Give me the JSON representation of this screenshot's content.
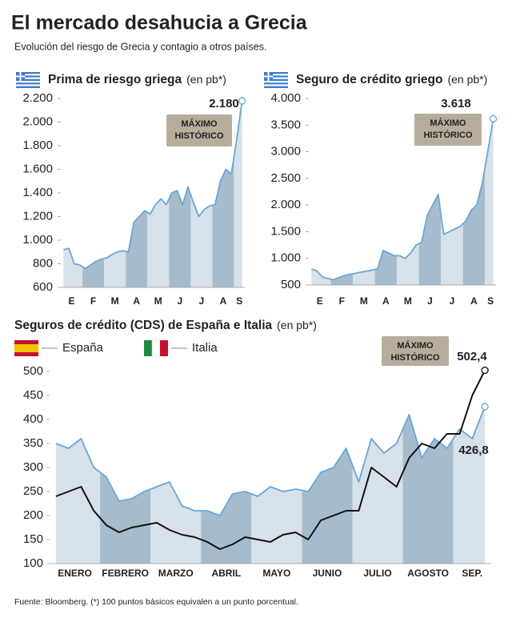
{
  "title": "El mercado desahucia a Grecia",
  "subtitle": "Evolución del riesgo de Grecia y contagio a otros países.",
  "source": "Fuente: Bloomberg. (*) 100 puntos básicos equivalen a un punto porcentual.",
  "chart_data": [
    {
      "type": "area",
      "title": "Prima de riesgo griega",
      "unit": "(en pb*)",
      "categories": [
        "E",
        null,
        null,
        null,
        "F",
        null,
        null,
        null,
        "M",
        null,
        null,
        null,
        "A",
        null,
        null,
        null,
        "M",
        null,
        null,
        null,
        "J",
        null,
        null,
        null,
        "J",
        null,
        null,
        null,
        "A",
        null,
        null,
        null,
        "S",
        null
      ],
      "series": [
        {
          "name": null,
          "color": "#6aa6d6",
          "values": [
            920,
            930,
            800,
            790,
            760,
            790,
            820,
            840,
            850,
            880,
            900,
            910,
            900,
            1150,
            1200,
            1250,
            1220,
            1300,
            1350,
            1300,
            1400,
            1420,
            1300,
            1450,
            1320,
            1200,
            1260,
            1290,
            1300,
            1500,
            1600,
            1560,
            1850,
            2180
          ],
          "value_labels": [
            null,
            null,
            null,
            null,
            null,
            null,
            null,
            null,
            null,
            null,
            null,
            null,
            null,
            null,
            null,
            null,
            null,
            null,
            null,
            null,
            null,
            null,
            null,
            null,
            null,
            null,
            null,
            null,
            null,
            null,
            null,
            null,
            null,
            "2.180"
          ]
        }
      ],
      "fill_colors": [
        "#d6e1ea",
        "#a6bccd"
      ],
      "annotation": [
        "MÁXIMO",
        "HISTÓRICO"
      ],
      "ylim": [
        600,
        2200
      ],
      "yticks": [
        600,
        800,
        {
          "value": 1000,
          "label": "1.000"
        },
        {
          "value": 1200,
          "label": "1.200"
        },
        {
          "value": 1400,
          "label": "1.400"
        },
        {
          "value": 1600,
          "label": "1.600"
        },
        {
          "value": 1800,
          "label": "1.800"
        },
        {
          "value": 2000,
          "label": "2.000"
        },
        {
          "value": 2200,
          "label": "2.200"
        }
      ],
      "grid": false
    },
    {
      "type": "area",
      "title": "Seguro de crédito griego",
      "unit": "(en pb*)",
      "categories": [
        "E",
        null,
        null,
        null,
        "F",
        null,
        null,
        null,
        "M",
        null,
        null,
        null,
        "A",
        null,
        null,
        null,
        "M",
        null,
        null,
        null,
        "J",
        null,
        null,
        null,
        "J",
        null,
        null,
        null,
        "A",
        null,
        null,
        null,
        "S",
        null
      ],
      "series": [
        {
          "name": null,
          "color": "#6aa6d6",
          "values": [
            800,
            760,
            650,
            620,
            600,
            640,
            680,
            700,
            720,
            740,
            760,
            780,
            800,
            1150,
            1100,
            1050,
            1050,
            1000,
            1100,
            1250,
            1300,
            1800,
            2000,
            2200,
            1450,
            1500,
            1550,
            1600,
            1700,
            1900,
            2000,
            2400,
            3000,
            3618
          ],
          "value_labels": [
            null,
            null,
            null,
            null,
            null,
            null,
            null,
            null,
            null,
            null,
            null,
            null,
            null,
            null,
            null,
            null,
            null,
            null,
            null,
            null,
            null,
            null,
            null,
            null,
            null,
            null,
            null,
            null,
            null,
            null,
            null,
            null,
            null,
            "3.618"
          ]
        }
      ],
      "fill_colors": [
        "#d6e1ea",
        "#a6bccd"
      ],
      "annotation": [
        "MÁXIMO",
        "HISTÓRICO"
      ],
      "ylim": [
        500,
        4000
      ],
      "yticks": [
        500,
        {
          "value": 1000,
          "label": "1.000"
        },
        {
          "value": 1500,
          "label": "1.500"
        },
        {
          "value": 2000,
          "label": "2.000"
        },
        {
          "value": 2500,
          "label": "2.500"
        },
        {
          "value": 3000,
          "label": "3.000"
        },
        {
          "value": 3500,
          "label": "3.500"
        },
        {
          "value": 4000,
          "label": "4.000"
        }
      ],
      "grid": false
    },
    {
      "type": "area",
      "title": "Seguros de crédito (CDS) de España e Italia",
      "unit": "(en pb*)",
      "categories": [
        "ENERO",
        null,
        null,
        null,
        "FEBRERO",
        null,
        null,
        null,
        "MARZO",
        null,
        null,
        null,
        "ABRIL",
        null,
        null,
        null,
        "MAYO",
        null,
        null,
        null,
        "JUNIO",
        null,
        null,
        null,
        "JULIO",
        null,
        null,
        null,
        "AGOSTO",
        null,
        null,
        null,
        "SEP.",
        null,
        null
      ],
      "series": [
        {
          "name": "España",
          "color": "#6aa6d6",
          "values": [
            350,
            340,
            360,
            300,
            280,
            230,
            235,
            250,
            260,
            270,
            220,
            210,
            210,
            200,
            245,
            250,
            240,
            260,
            250,
            255,
            250,
            290,
            300,
            340,
            270,
            360,
            330,
            350,
            410,
            320,
            360,
            340,
            380,
            360,
            426.8
          ],
          "value_labels": [
            null,
            null,
            null,
            null,
            null,
            null,
            null,
            null,
            null,
            null,
            null,
            null,
            null,
            null,
            null,
            null,
            null,
            null,
            null,
            null,
            null,
            null,
            null,
            null,
            null,
            null,
            null,
            null,
            null,
            null,
            null,
            null,
            null,
            null,
            "426,8"
          ]
        },
        {
          "name": "Italia",
          "color": "#111111",
          "values": [
            240,
            250,
            260,
            210,
            180,
            165,
            175,
            180,
            185,
            170,
            160,
            155,
            145,
            130,
            140,
            155,
            150,
            145,
            160,
            165,
            150,
            190,
            200,
            210,
            210,
            300,
            280,
            260,
            320,
            350,
            340,
            370,
            370,
            450,
            502.4
          ],
          "value_labels": [
            null,
            null,
            null,
            null,
            null,
            null,
            null,
            null,
            null,
            null,
            null,
            null,
            null,
            null,
            null,
            null,
            null,
            null,
            null,
            null,
            null,
            null,
            null,
            null,
            null,
            null,
            null,
            null,
            null,
            null,
            null,
            null,
            null,
            null,
            "502,4"
          ]
        }
      ],
      "fill_colors": [
        "#d6e1ea",
        "#a6bccd"
      ],
      "annotation": [
        "MÁXIMO",
        "HISTÓRICO"
      ],
      "ylim": [
        100,
        500
      ],
      "yticks": [
        100,
        150,
        200,
        250,
        300,
        350,
        400,
        450,
        500
      ],
      "grid": false
    }
  ]
}
